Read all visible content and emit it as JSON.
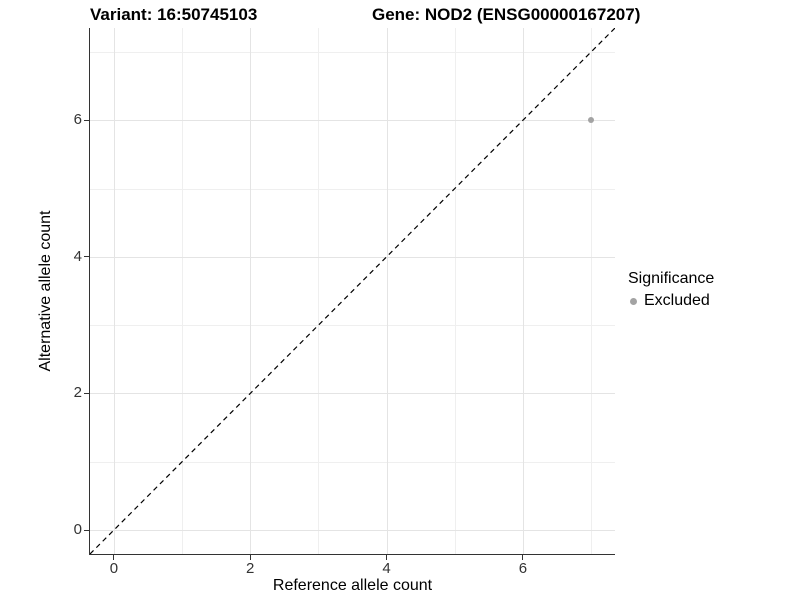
{
  "chart_data": {
    "type": "scatter",
    "title_left": "Variant: 16:50745103",
    "title_right": "Gene: NOD2 (ENSG00000167207)",
    "xlabel": "Reference allele count",
    "ylabel": "Alternative allele count",
    "xlim": [
      -0.35,
      7.35
    ],
    "ylim": [
      -0.35,
      7.35
    ],
    "x_major_ticks": [
      0,
      2,
      4,
      6
    ],
    "x_minor_ticks": [
      1,
      3,
      5,
      7
    ],
    "y_major_ticks": [
      0,
      2,
      4,
      6
    ],
    "y_minor_ticks": [
      1,
      3,
      5,
      7
    ],
    "grid": true,
    "reference_line": {
      "kind": "identity",
      "linestyle": "dashed",
      "color": "#000000"
    },
    "series": [
      {
        "name": "Excluded",
        "color": "#a3a3a3",
        "points": [
          [
            7,
            6
          ]
        ]
      }
    ],
    "legend": {
      "title": "Significance",
      "position": "right",
      "entries": [
        {
          "label": "Excluded",
          "color": "#a3a3a3"
        }
      ]
    }
  },
  "colors": {
    "background": "#ffffff",
    "grid_major": "#e4e4e4",
    "grid_minor": "#efefef",
    "axis_line": "#333333",
    "tick_label": "#333333"
  }
}
